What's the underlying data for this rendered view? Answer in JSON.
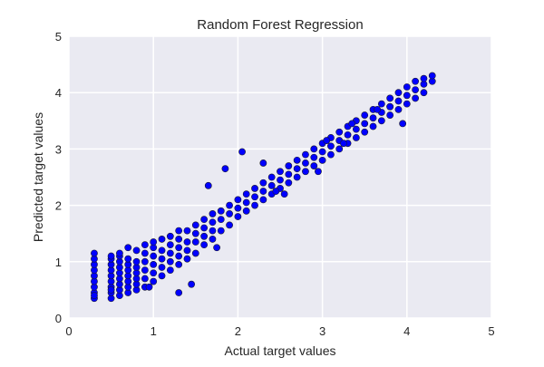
{
  "chart_data": {
    "type": "scatter",
    "title": "Random Forest Regression",
    "xlabel": "Actual target values",
    "ylabel": "Predicted target values",
    "xlim": [
      0,
      5
    ],
    "ylim": [
      0,
      5
    ],
    "xticks": [
      "0",
      "1",
      "2",
      "3",
      "4",
      "5"
    ],
    "yticks": [
      "0",
      "1",
      "2",
      "3",
      "4",
      "5"
    ],
    "grid": true,
    "colors": {
      "point_fill": "#0000ff",
      "point_edge": "#1a1a2e",
      "plot_background": "#eaeaf2",
      "grid": "#ffffff",
      "text": "#262626"
    },
    "series": [
      {
        "x": [
          0.3,
          0.3,
          0.3,
          0.3,
          0.3,
          0.3,
          0.3,
          0.3,
          0.3,
          0.3,
          0.5,
          0.5,
          0.5,
          0.5,
          0.5,
          0.5,
          0.5,
          0.5,
          0.5,
          0.5,
          0.6,
          0.6,
          0.6,
          0.6,
          0.6,
          0.6,
          0.6,
          0.6,
          0.6,
          0.7,
          0.7,
          0.7,
          0.7,
          0.7,
          0.7,
          0.7,
          0.7,
          0.8,
          0.8,
          0.8,
          0.8,
          0.8,
          0.8,
          0.8,
          0.9,
          0.9,
          0.9,
          0.9,
          0.9,
          0.9,
          1.0,
          1.0,
          1.0,
          1.0,
          1.0,
          1.0,
          1.1,
          1.1,
          1.1,
          1.1,
          1.1,
          1.2,
          1.2,
          1.2,
          1.2,
          1.2,
          1.3,
          1.3,
          1.3,
          1.3,
          1.3,
          1.4,
          1.4,
          1.4,
          1.4,
          1.5,
          1.5,
          1.5,
          1.5,
          1.6,
          1.6,
          1.6,
          1.6,
          1.7,
          1.7,
          1.7,
          1.7,
          1.8,
          1.8,
          1.8,
          1.9,
          1.9,
          1.9,
          2.0,
          2.0,
          2.0,
          2.1,
          2.1,
          2.1,
          2.2,
          2.2,
          2.2,
          2.3,
          2.3,
          2.3,
          2.4,
          2.4,
          2.4,
          2.5,
          2.5,
          2.5,
          2.6,
          2.6,
          2.6,
          2.7,
          2.7,
          2.7,
          2.8,
          2.8,
          2.8,
          2.9,
          2.9,
          2.9,
          3.0,
          3.0,
          3.0,
          3.1,
          3.1,
          3.1,
          3.2,
          3.2,
          3.2,
          3.3,
          3.3,
          3.3,
          3.4,
          3.4,
          3.4,
          3.5,
          3.5,
          3.5,
          3.6,
          3.6,
          3.6,
          3.7,
          3.7,
          3.7,
          3.8,
          3.8,
          3.8,
          3.9,
          3.9,
          3.9,
          4.0,
          4.0,
          4.0,
          4.1,
          4.1,
          4.1,
          4.2,
          4.2,
          4.2,
          4.3,
          4.3,
          1.85,
          1.3,
          1.65,
          2.05,
          2.3,
          2.55,
          3.8,
          3.95,
          3.65,
          3.25,
          2.95,
          1.75,
          1.45,
          0.95,
          3.05,
          3.35,
          2.45
        ],
        "y": [
          0.35,
          0.45,
          0.55,
          0.65,
          0.75,
          0.85,
          0.95,
          1.05,
          1.15,
          0.4,
          0.35,
          0.45,
          0.55,
          0.65,
          0.75,
          0.85,
          0.95,
          1.05,
          1.1,
          0.5,
          0.4,
          0.5,
          0.6,
          0.7,
          0.8,
          0.9,
          1.0,
          1.1,
          1.15,
          0.45,
          0.55,
          0.65,
          0.75,
          0.85,
          0.95,
          1.05,
          1.25,
          0.5,
          0.6,
          0.7,
          0.8,
          0.9,
          1.0,
          1.2,
          0.55,
          0.7,
          0.85,
          1.0,
          1.15,
          1.3,
          0.65,
          0.8,
          0.95,
          1.1,
          1.25,
          1.35,
          0.75,
          0.9,
          1.05,
          1.2,
          1.4,
          0.85,
          1.0,
          1.15,
          1.3,
          1.45,
          0.95,
          1.1,
          1.25,
          1.4,
          1.55,
          1.05,
          1.2,
          1.35,
          1.55,
          1.15,
          1.35,
          1.5,
          1.65,
          1.3,
          1.45,
          1.6,
          1.75,
          1.4,
          1.55,
          1.7,
          1.85,
          1.55,
          1.75,
          1.9,
          1.65,
          1.85,
          2.0,
          1.8,
          1.95,
          2.1,
          1.9,
          2.05,
          2.2,
          2.0,
          2.15,
          2.3,
          2.1,
          2.25,
          2.4,
          2.2,
          2.35,
          2.5,
          2.3,
          2.45,
          2.6,
          2.4,
          2.55,
          2.7,
          2.5,
          2.65,
          2.8,
          2.6,
          2.75,
          2.9,
          2.7,
          2.85,
          3.0,
          2.8,
          2.95,
          3.1,
          2.9,
          3.05,
          3.2,
          3.0,
          3.15,
          3.3,
          3.1,
          3.25,
          3.4,
          3.2,
          3.35,
          3.5,
          3.3,
          3.45,
          3.6,
          3.4,
          3.55,
          3.7,
          3.5,
          3.65,
          3.8,
          3.6,
          3.75,
          3.9,
          3.7,
          3.85,
          4.0,
          3.8,
          3.95,
          4.1,
          3.9,
          4.05,
          4.2,
          4.0,
          4.15,
          4.25,
          4.2,
          4.3,
          2.65,
          0.45,
          2.35,
          2.95,
          2.75,
          2.2,
          3.75,
          3.45,
          3.7,
          3.1,
          2.6,
          1.25,
          0.6,
          0.55,
          3.15,
          3.45,
          2.25
        ]
      }
    ]
  }
}
